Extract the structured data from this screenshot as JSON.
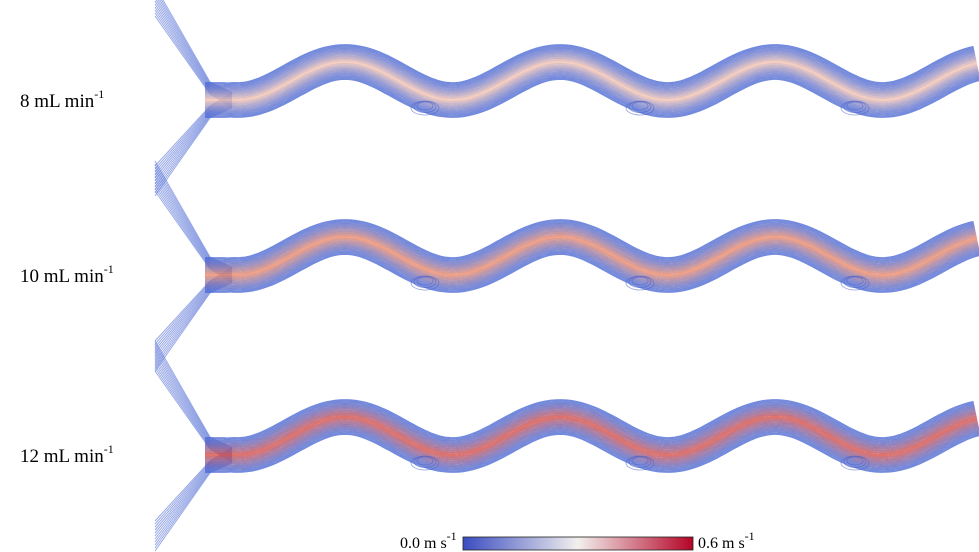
{
  "rows": [
    {
      "label": "8 mL min",
      "sup": "-1"
    },
    {
      "label": "10 mL min",
      "sup": "-1"
    },
    {
      "label": "12 mL min",
      "sup": "-1"
    }
  ],
  "colorbar": {
    "min_label": "0.0 m s",
    "min_sup": "-1",
    "max_label": "0.6 m s",
    "max_sup": "-1"
  }
}
